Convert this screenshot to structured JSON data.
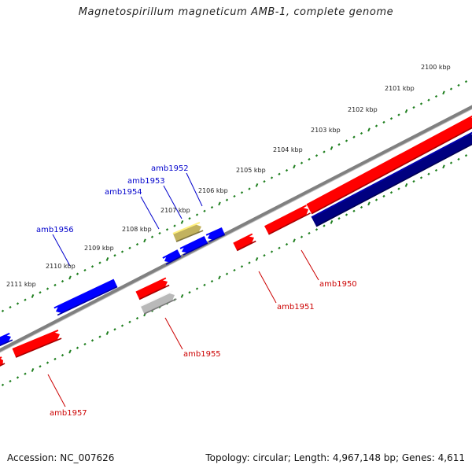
{
  "title": "Magnetospirillum magneticum AMB-1, complete genome",
  "accession": "Accession: NC_007626",
  "summary": "Topology: circular; Length: 4,967,148 bp; Genes: 4,611",
  "colors": {
    "forward_gene": "#ff0000",
    "reverse_gene": "#0000ff",
    "highlight_gene": "#000080",
    "pseudo_gene": "#b9b9b9",
    "rna_gene": "#c2b25e",
    "backbone": "#808080",
    "scale_ticks": "#1f7f1f",
    "forward_label": "#cc0000",
    "reverse_label": "#0000cc"
  },
  "scale_labels": [
    "2100 kbp",
    "2101 kbp",
    "2102 kbp",
    "2103 kbp",
    "2104 kbp",
    "2105 kbp",
    "2106 kbp",
    "2107 kbp",
    "2108 kbp",
    "2109 kbp",
    "2110 kbp",
    "2111 kbp"
  ],
  "gene_labels": [
    {
      "id": "amb1950",
      "strand": "forward"
    },
    {
      "id": "amb1951",
      "strand": "forward"
    },
    {
      "id": "amb1952",
      "strand": "reverse"
    },
    {
      "id": "amb1953",
      "strand": "reverse"
    },
    {
      "id": "amb1954",
      "strand": "reverse"
    },
    {
      "id": "amb1955",
      "strand": "forward"
    },
    {
      "id": "amb1956",
      "strand": "reverse"
    },
    {
      "id": "amb1957",
      "strand": "forward"
    }
  ]
}
